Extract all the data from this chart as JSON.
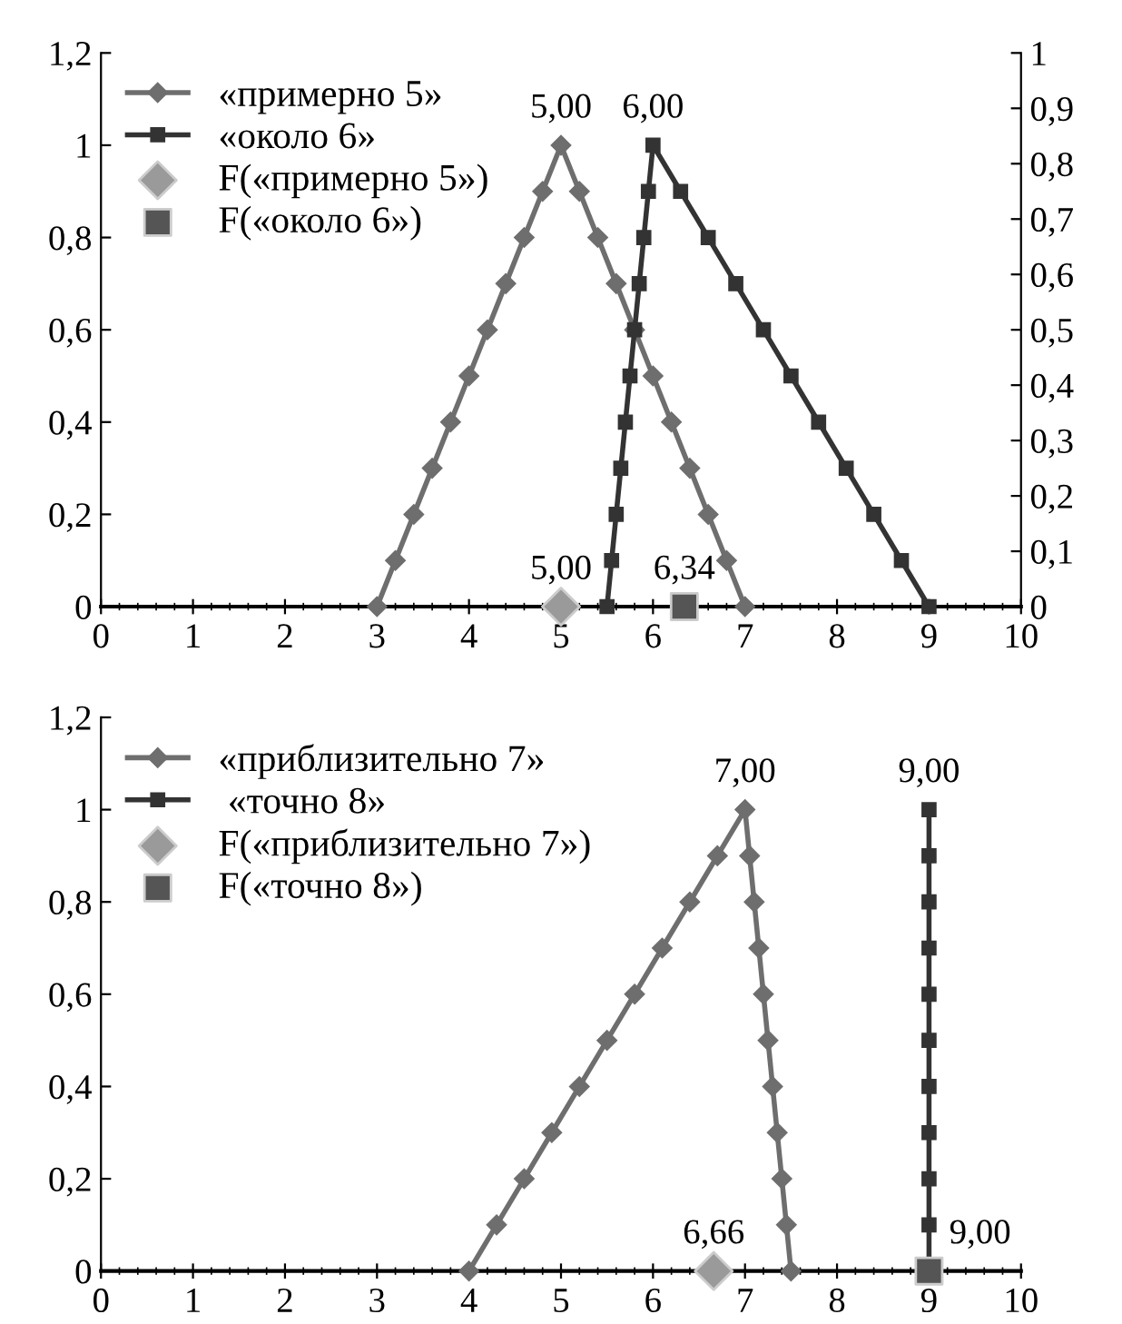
{
  "chart_data": [
    {
      "type": "line",
      "legend": "top left",
      "grid": false,
      "xlim": [
        0,
        10
      ],
      "xticks": [
        0,
        1,
        2,
        3,
        4,
        5,
        6,
        7,
        8,
        9,
        10
      ],
      "ylim": [
        0,
        1.2
      ],
      "yticks": [
        0,
        {
          "value": 0.2,
          "label": "0,2"
        },
        {
          "value": 0.4,
          "label": "0,4"
        },
        {
          "value": 0.6,
          "label": "0,6"
        },
        {
          "value": 0.8,
          "label": "0,8"
        },
        1,
        {
          "value": 1.2,
          "label": "1,2"
        }
      ],
      "y2lim": [
        0,
        1
      ],
      "y2ticks": [
        0,
        {
          "value": 0.1,
          "label": "0,1"
        },
        {
          "value": 0.2,
          "label": "0,2"
        },
        {
          "value": 0.3,
          "label": "0,3"
        },
        {
          "value": 0.4,
          "label": "0,4"
        },
        {
          "value": 0.5,
          "label": "0,5"
        },
        {
          "value": 0.6,
          "label": "0,6"
        },
        {
          "value": 0.7,
          "label": "0,7"
        },
        {
          "value": 0.8,
          "label": "0,8"
        },
        {
          "value": 0.9,
          "label": "0,9"
        },
        1
      ],
      "series": [
        {
          "name": "«примерно 5»",
          "color": "#6e6e6e",
          "marker": "diamond",
          "x": [
            3,
            3.2,
            3.4,
            3.6,
            3.8,
            4,
            4.2,
            4.4,
            4.6,
            4.8,
            5,
            5.2,
            5.4,
            5.6,
            5.8,
            6,
            6.2,
            6.4,
            6.6,
            6.8,
            7
          ],
          "values": [
            0,
            0.1,
            0.2,
            0.3,
            0.4,
            0.5,
            0.6,
            0.7,
            0.8,
            0.9,
            1,
            0.9,
            0.8,
            0.7,
            0.6,
            0.5,
            0.4,
            0.3,
            0.2,
            0.1,
            0
          ]
        },
        {
          "name": "«около 6»",
          "color": "#333333",
          "marker": "square",
          "x": [
            5.5,
            5.55,
            5.6,
            5.65,
            5.7,
            5.75,
            5.8,
            5.85,
            5.9,
            5.95,
            6,
            6.3,
            6.6,
            6.9,
            7.2,
            7.5,
            7.8,
            8.1,
            8.4,
            8.7,
            9
          ],
          "values": [
            0,
            0.1,
            0.2,
            0.3,
            0.4,
            0.5,
            0.6,
            0.7,
            0.8,
            0.9,
            1,
            0.9,
            0.8,
            0.7,
            0.6,
            0.5,
            0.4,
            0.3,
            0.2,
            0.1,
            0
          ]
        },
        {
          "name": "F(«примерно 5»)",
          "type": "scatter",
          "color": "#9a9a9a",
          "marker": "diamond",
          "x": [
            5
          ],
          "values": [
            0
          ]
        },
        {
          "name": "F(«около 6»)",
          "type": "scatter",
          "color": "#555555",
          "marker": "square",
          "x": [
            6.34
          ],
          "values": [
            0
          ]
        }
      ],
      "annotations": [
        {
          "text": "5,00",
          "x": 5,
          "y": 1
        },
        {
          "text": "6,00",
          "x": 6,
          "y": 1
        },
        {
          "text": "5,00",
          "x": 5,
          "y": 0
        },
        {
          "text": "6,34",
          "x": 6.34,
          "y": 0
        }
      ]
    },
    {
      "type": "line",
      "legend": "top left",
      "grid": false,
      "xlim": [
        0,
        10
      ],
      "xticks": [
        0,
        1,
        2,
        3,
        4,
        5,
        6,
        7,
        8,
        9,
        10
      ],
      "ylim": [
        0,
        1.2
      ],
      "yticks": [
        0,
        {
          "value": 0.2,
          "label": "0,2"
        },
        {
          "value": 0.4,
          "label": "0,4"
        },
        {
          "value": 0.6,
          "label": "0,6"
        },
        {
          "value": 0.8,
          "label": "0,8"
        },
        1,
        {
          "value": 1.2,
          "label": "1,2"
        }
      ],
      "series": [
        {
          "name": "«приблизительно 7»",
          "color": "#6e6e6e",
          "marker": "diamond",
          "x": [
            4,
            4.3,
            4.6,
            4.9,
            5.2,
            5.5,
            5.8,
            6.1,
            6.4,
            6.7,
            7,
            7.05,
            7.1,
            7.15,
            7.2,
            7.25,
            7.3,
            7.35,
            7.4,
            7.45,
            7.5
          ],
          "values": [
            0,
            0.1,
            0.2,
            0.3,
            0.4,
            0.5,
            0.6,
            0.7,
            0.8,
            0.9,
            1,
            0.9,
            0.8,
            0.7,
            0.6,
            0.5,
            0.4,
            0.3,
            0.2,
            0.1,
            0
          ]
        },
        {
          "name": " «точно 8»",
          "color": "#333333",
          "marker": "square",
          "x": [
            9,
            9,
            9,
            9,
            9,
            9,
            9,
            9,
            9,
            9,
            9
          ],
          "values": [
            0,
            0.1,
            0.2,
            0.3,
            0.4,
            0.5,
            0.6,
            0.7,
            0.8,
            0.9,
            1
          ]
        },
        {
          "name": "F(«приблизительно 7»)",
          "type": "scatter",
          "color": "#9a9a9a",
          "marker": "diamond",
          "x": [
            6.66
          ],
          "values": [
            0
          ]
        },
        {
          "name": "F(«точно 8»)",
          "type": "scatter",
          "color": "#555555",
          "marker": "square",
          "x": [
            9
          ],
          "values": [
            0
          ]
        }
      ],
      "annotations": [
        {
          "text": "7,00",
          "x": 7,
          "y": 1
        },
        {
          "text": "9,00",
          "x": 9,
          "y": 1
        },
        {
          "text": "6,66",
          "x": 6.66,
          "y": 0
        },
        {
          "text": "9,00",
          "x": 9,
          "y": 0
        }
      ]
    }
  ]
}
